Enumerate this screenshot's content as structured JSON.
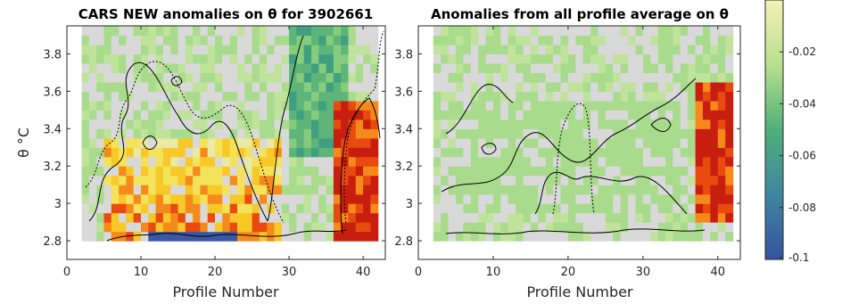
{
  "chart_data": [
    {
      "type": "heatmap",
      "title": "CARS NEW anomalies on θ for 3902661",
      "xlabel": "Profile Number",
      "ylabel": "θ °C",
      "xlim": [
        0,
        43
      ],
      "ylim": [
        2.7,
        3.95
      ],
      "xticks": [
        "0",
        "10",
        "20",
        "30",
        "40"
      ],
      "yticks": [
        "2.8",
        "3",
        "3.2",
        "3.4",
        "3.6",
        "3.8"
      ],
      "x_range": [
        2,
        42
      ],
      "y_range": [
        2.8,
        3.9
      ],
      "gray_value": -0.02,
      "color_limits": [
        -0.1,
        0.02
      ],
      "warm_region": {
        "x": [
          5,
          28
        ],
        "y": [
          2.8,
          3.3
        ],
        "value": 0.05
      },
      "warm_column": {
        "x": [
          36,
          42
        ],
        "y": [
          2.8,
          3.5
        ],
        "value": 0.08
      },
      "cool_region": {
        "x": [
          30,
          37
        ],
        "y": [
          3.2,
          3.9
        ],
        "value": -0.05
      },
      "cold_row": {
        "x": [
          11,
          22
        ],
        "y": [
          2.78,
          2.83
        ],
        "value": -0.09
      }
    },
    {
      "type": "heatmap",
      "title": "Anomalies from all profile average on θ",
      "xlabel": "Profile Number",
      "ylabel": "",
      "xlim": [
        0,
        43
      ],
      "ylim": [
        2.7,
        3.95
      ],
      "xticks": [
        "0",
        "10",
        "20",
        "30",
        "40"
      ],
      "yticks": [
        "2.8",
        "3",
        "3.2",
        "3.4",
        "3.6",
        "3.8"
      ],
      "x_range": [
        2,
        42
      ],
      "y_range": [
        2.8,
        3.9
      ],
      "gray_value": -0.02,
      "color_limits": [
        -0.1,
        0.02
      ],
      "warm_column": {
        "x": [
          37,
          42
        ],
        "y": [
          2.85,
          3.6
        ],
        "value": 0.08
      },
      "light_region": {
        "x": [
          5,
          35
        ],
        "y": [
          2.9,
          3.5
        ],
        "value": -0.03
      }
    }
  ],
  "colorbar": {
    "ticks": [
      "-0.02",
      "-0.04",
      "-0.06",
      "-0.08",
      "-0.1"
    ],
    "values": [
      -0.02,
      -0.04,
      -0.06,
      -0.08,
      -0.1
    ],
    "colors": [
      "#f5f0b8",
      "#b8e08c",
      "#4fb07a",
      "#3f86a0",
      "#3553a0"
    ]
  }
}
